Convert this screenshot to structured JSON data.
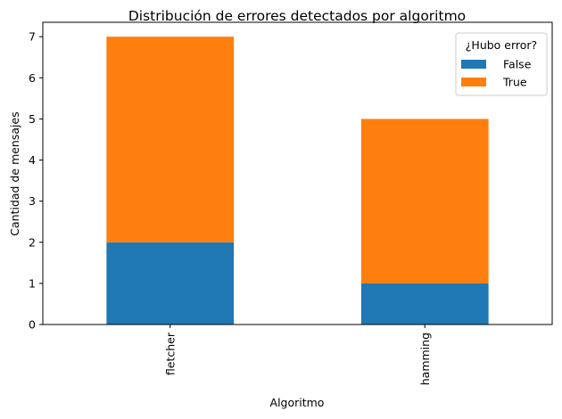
{
  "chart_data": {
    "type": "bar",
    "stacked": true,
    "title": "Distribución de errores detectados por algoritmo",
    "xlabel": "Algoritmo",
    "ylabel": "Cantidad de mensajes",
    "categories": [
      "fletcher",
      "hamming"
    ],
    "series": [
      {
        "name": "False",
        "values": [
          2,
          1
        ],
        "color": "#1f77b4"
      },
      {
        "name": "True",
        "values": [
          5,
          4
        ],
        "color": "#ff7f0e"
      }
    ],
    "ylim": [
      0,
      7.35
    ],
    "yticks": [
      0,
      1,
      2,
      3,
      4,
      5,
      6,
      7
    ],
    "grid": false,
    "legend": {
      "title": "¿Hubo error?",
      "placement": "top-right"
    }
  }
}
